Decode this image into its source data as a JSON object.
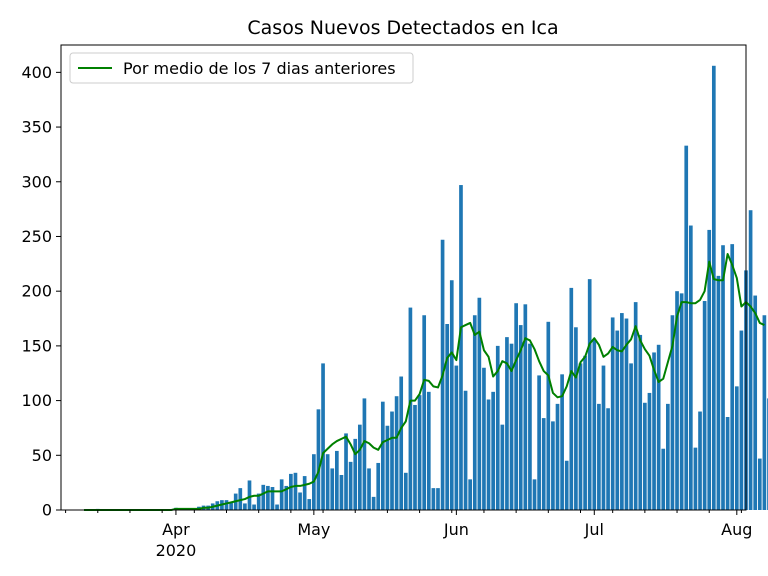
{
  "chart_data": {
    "type": "bar",
    "title": "Casos Nuevos Detectados en Ica",
    "xlabel": "",
    "ylabel": "",
    "start_date": "2020-03-12",
    "xlim": [
      "2020-03-07",
      "2020-08-03"
    ],
    "ylim": [
      0,
      425
    ],
    "yticks": [
      0,
      50,
      100,
      150,
      200,
      250,
      300,
      350,
      400
    ],
    "xticks": [
      {
        "date": "2020-04-01",
        "label": "Apr",
        "sublabel": "2020"
      },
      {
        "date": "2020-05-01",
        "label": "May",
        "sublabel": ""
      },
      {
        "date": "2020-06-01",
        "label": "Jun",
        "sublabel": ""
      },
      {
        "date": "2020-07-01",
        "label": "Jul",
        "sublabel": ""
      },
      {
        "date": "2020-08-01",
        "label": "Aug",
        "sublabel": ""
      }
    ],
    "grid": false,
    "legend_position": "top-left",
    "colors": {
      "bars": "#1f77b4",
      "line": "#008000"
    },
    "series": [
      {
        "type": "bar",
        "values": [
          0,
          0,
          0,
          1,
          0,
          0,
          0,
          0,
          0,
          0,
          0,
          0,
          0,
          0,
          0,
          0,
          0,
          0,
          0,
          0,
          2,
          1,
          0,
          0,
          1,
          3,
          4,
          4,
          6,
          8,
          9,
          9,
          7,
          15,
          20,
          6,
          27,
          5,
          15,
          23,
          22,
          21,
          5,
          28,
          22,
          33,
          34,
          16,
          31,
          10,
          51,
          92,
          134,
          51,
          38,
          54,
          32,
          70,
          44,
          65,
          78,
          102,
          38,
          12,
          43,
          99,
          77,
          90,
          104,
          122,
          34,
          185,
          96,
          105,
          178,
          108,
          20,
          20,
          247,
          170,
          210,
          132,
          297,
          109,
          28,
          178,
          194,
          130,
          101,
          108,
          150,
          78,
          158,
          152,
          189,
          169,
          188,
          152,
          28,
          123,
          84,
          172,
          81,
          97,
          124,
          45,
          203,
          167,
          134,
          141,
          211,
          156,
          97,
          132,
          93,
          176,
          164,
          180,
          175,
          134,
          190,
          160,
          98,
          107,
          144,
          151,
          56,
          97,
          178,
          200,
          198,
          333,
          260,
          57,
          90,
          191,
          256,
          406,
          214,
          242,
          85,
          243,
          113,
          164,
          219,
          274,
          196,
          47,
          178,
          102
        ]
      },
      {
        "type": "line",
        "name": "Por medio de los 7 dias anteriores",
        "values": [
          0,
          0,
          0,
          0,
          0,
          0,
          0,
          0,
          0,
          0,
          0,
          0,
          0,
          0,
          0,
          0,
          0,
          0,
          0,
          0,
          1,
          1,
          1,
          1,
          1,
          1,
          2,
          2,
          3,
          4,
          5,
          6,
          7,
          8,
          9,
          10,
          12,
          13,
          13,
          15,
          17,
          17,
          17,
          17,
          19,
          21,
          22,
          22,
          23,
          24,
          26,
          35,
          52,
          56,
          60,
          63,
          65,
          67,
          60,
          51,
          55,
          63,
          61,
          57,
          55,
          62,
          64,
          66,
          66,
          75,
          81,
          100,
          100,
          106,
          119,
          118,
          113,
          112,
          123,
          139,
          144,
          137,
          167,
          169,
          171,
          160,
          163,
          146,
          140,
          122,
          127,
          136,
          134,
          127,
          137,
          146,
          157,
          155,
          147,
          136,
          127,
          123,
          107,
          103,
          104,
          113,
          127,
          121,
          135,
          140,
          152,
          157,
          151,
          140,
          143,
          149,
          146,
          145,
          151,
          156,
          168,
          155,
          147,
          141,
          128,
          117,
          120,
          135,
          150,
          177,
          190,
          190,
          189,
          189,
          192,
          200,
          227,
          211,
          210,
          210,
          234,
          224,
          212,
          186,
          190,
          186,
          180,
          171,
          169
        ]
      }
    ]
  }
}
